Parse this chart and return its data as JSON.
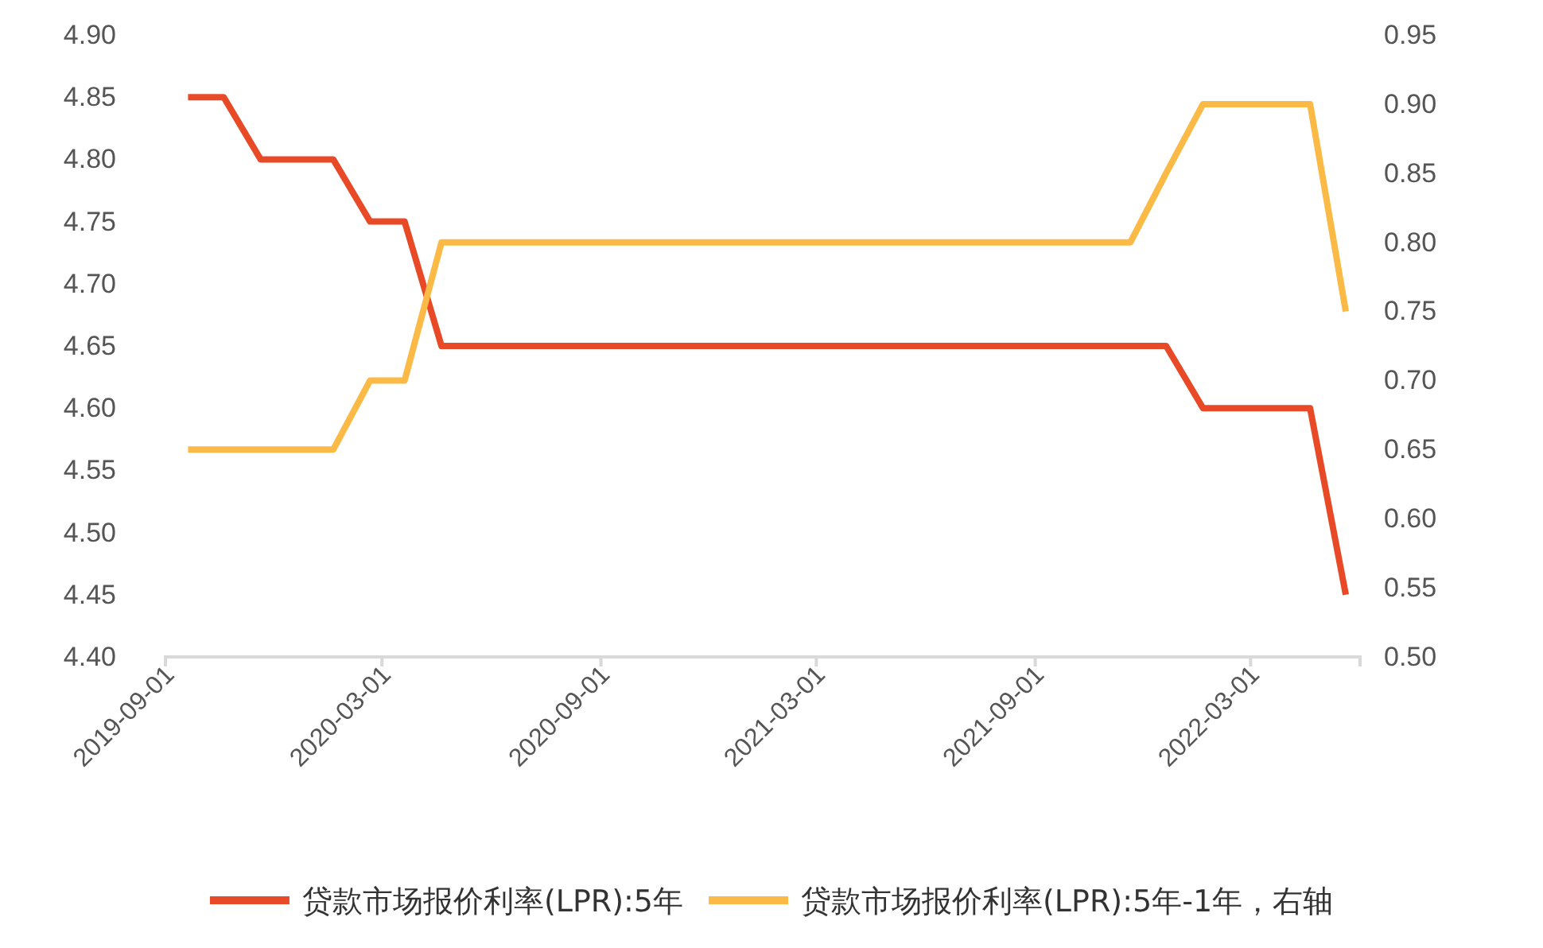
{
  "chart_data": {
    "type": "line",
    "x": [
      "2019-09-20",
      "2019-10-20",
      "2019-11-20",
      "2019-12-20",
      "2020-01-20",
      "2020-02-20",
      "2020-03-20",
      "2020-04-20",
      "2020-05-20",
      "2020-06-20",
      "2020-07-20",
      "2020-08-20",
      "2020-09-20",
      "2020-10-20",
      "2020-11-20",
      "2020-12-20",
      "2021-01-20",
      "2021-02-20",
      "2021-03-20",
      "2021-04-20",
      "2021-05-20",
      "2021-06-20",
      "2021-07-20",
      "2021-08-20",
      "2021-09-20",
      "2021-10-20",
      "2021-11-20",
      "2021-12-20",
      "2022-01-20",
      "2022-02-20",
      "2022-03-20",
      "2022-04-20",
      "2022-05-20"
    ],
    "series": [
      {
        "name": "贷款市场报价利率(LPR):5年",
        "color": "#e84a27",
        "values": [
          4.85,
          4.85,
          4.8,
          4.8,
          4.8,
          4.75,
          4.75,
          4.65,
          4.65,
          4.65,
          4.65,
          4.65,
          4.65,
          4.65,
          4.65,
          4.65,
          4.65,
          4.65,
          4.65,
          4.65,
          4.65,
          4.65,
          4.65,
          4.65,
          4.65,
          4.65,
          4.65,
          4.65,
          4.6,
          4.6,
          4.6,
          4.6,
          4.45
        ]
      },
      {
        "name": "贷款市场报价利率(LPR):5年-1年，右轴",
        "color": "#fbb946",
        "axis": "y2",
        "values": [
          0.65,
          0.65,
          0.65,
          0.65,
          0.65,
          0.7,
          0.7,
          0.8,
          0.8,
          0.8,
          0.8,
          0.8,
          0.8,
          0.8,
          0.8,
          0.8,
          0.8,
          0.8,
          0.8,
          0.8,
          0.8,
          0.8,
          0.8,
          0.8,
          0.8,
          0.8,
          0.8,
          0.85,
          0.9,
          0.9,
          0.9,
          0.9,
          0.75
        ]
      }
    ],
    "xlim": [
      "2019-09-01",
      "2022-06-01"
    ],
    "xticks": [
      "2019-09-01",
      "2020-03-01",
      "2020-09-01",
      "2021-03-01",
      "2021-09-01",
      "2022-03-01"
    ],
    "ylim": [
      4.4,
      4.9
    ],
    "yticks": [
      {
        "value": 4.4,
        "label": "4.40"
      },
      {
        "value": 4.45,
        "label": "4.45"
      },
      {
        "value": 4.5,
        "label": "4.50"
      },
      {
        "value": 4.55,
        "label": "4.55"
      },
      {
        "value": 4.6,
        "label": "4.60"
      },
      {
        "value": 4.65,
        "label": "4.65"
      },
      {
        "value": 4.7,
        "label": "4.70"
      },
      {
        "value": 4.75,
        "label": "4.75"
      },
      {
        "value": 4.8,
        "label": "4.80"
      },
      {
        "value": 4.85,
        "label": "4.85"
      },
      {
        "value": 4.9,
        "label": "4.90"
      }
    ],
    "y2lim": [
      0.5,
      0.95
    ],
    "y2ticks": [
      {
        "value": 0.5,
        "label": "0.50"
      },
      {
        "value": 0.55,
        "label": "0.55"
      },
      {
        "value": 0.6,
        "label": "0.60"
      },
      {
        "value": 0.65,
        "label": "0.65"
      },
      {
        "value": 0.7,
        "label": "0.70"
      },
      {
        "value": 0.75,
        "label": "0.75"
      },
      {
        "value": 0.8,
        "label": "0.80"
      },
      {
        "value": 0.85,
        "label": "0.85"
      },
      {
        "value": 0.9,
        "label": "0.90"
      },
      {
        "value": 0.95,
        "label": "0.95"
      }
    ],
    "legend": "bottom",
    "marker": "none",
    "line_style": "solid"
  }
}
